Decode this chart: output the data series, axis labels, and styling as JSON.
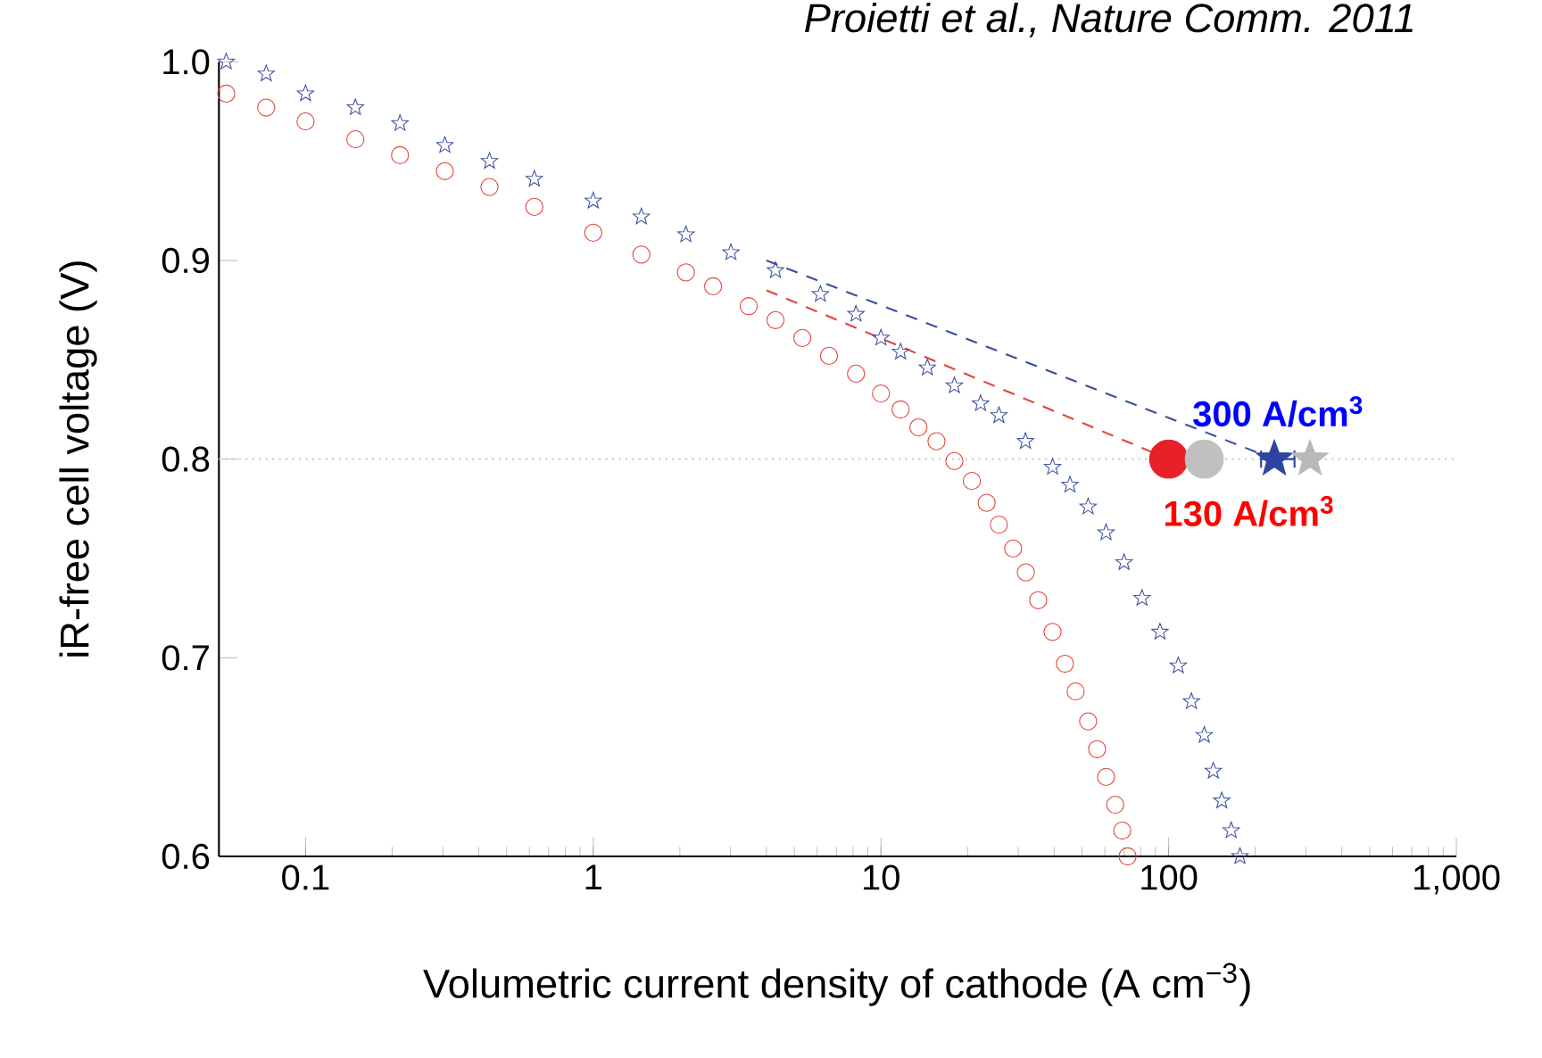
{
  "chart_data": {
    "type": "scatter",
    "xlabel": "Volumetric current density of cathode (A cm$^{−3}$)",
    "ylabel": "iR-free cell voltage (V)",
    "log": "x",
    "xlim": [
      0.05,
      1000
    ],
    "ylim": [
      0.6,
      1.0
    ],
    "xticks": [
      0.1,
      1,
      10,
      100,
      {
        "value": 1000,
        "label": "1,000"
      }
    ],
    "yticks": [
      0.6,
      0.7,
      0.8,
      0.9,
      {
        "value": 1,
        "label": "1.0"
      }
    ],
    "series": [
      {
        "marker": "circle",
        "color": "#e0463c",
        "x": [
          0.053,
          0.073,
          0.1,
          0.149,
          0.213,
          0.305,
          0.436,
          0.624,
          1,
          1.47,
          2.1,
          2.61,
          3.47,
          4.3,
          5.33,
          6.6,
          8.19,
          10,
          11.7,
          13.5,
          15.6,
          18,
          20.7,
          23.3,
          25.7,
          28.8,
          31.9,
          35.2,
          39.5,
          43.6,
          47.5,
          52.5,
          56.4,
          60.6,
          65.2,
          69,
          72
        ],
        "values": [
          0.984,
          0.977,
          0.97,
          0.961,
          0.953,
          0.945,
          0.937,
          0.927,
          0.914,
          0.903,
          0.894,
          0.887,
          0.877,
          0.87,
          0.861,
          0.852,
          0.843,
          0.833,
          0.825,
          0.816,
          0.809,
          0.799,
          0.789,
          0.778,
          0.767,
          0.755,
          0.743,
          0.729,
          0.713,
          0.697,
          0.683,
          0.668,
          0.654,
          0.64,
          0.626,
          0.613,
          0.6
        ]
      },
      {
        "marker": "star",
        "color": "#3c4f9e",
        "x": [
          0.053,
          0.073,
          0.1,
          0.149,
          0.213,
          0.305,
          0.436,
          0.624,
          1,
          1.47,
          2.1,
          3.01,
          4.3,
          6.16,
          8.19,
          10,
          11.7,
          14.5,
          18,
          22.2,
          25.7,
          31.8,
          39.5,
          45.4,
          52.5,
          60.6,
          70,
          80.8,
          93.3,
          108,
          120,
          133,
          143,
          153,
          165,
          177
        ],
        "values": [
          1.0,
          0.994,
          0.984,
          0.977,
          0.969,
          0.958,
          0.95,
          0.941,
          0.93,
          0.922,
          0.913,
          0.904,
          0.895,
          0.883,
          0.873,
          0.861,
          0.854,
          0.846,
          0.837,
          0.828,
          0.822,
          0.809,
          0.796,
          0.787,
          0.776,
          0.763,
          0.748,
          0.73,
          0.713,
          0.696,
          0.678,
          0.661,
          0.643,
          0.628,
          0.613,
          0.6
        ]
      },
      {
        "type": "line",
        "line_style": "dashed",
        "marker": "none",
        "color": "#e0463c",
        "x": [
          4,
          100
        ],
        "values": [
          0.885,
          0.8
        ]
      },
      {
        "type": "line",
        "line_style": "dashed",
        "marker": "none",
        "color": "#3c4f9e",
        "x": [
          4,
          233
        ],
        "values": [
          0.9,
          0.8
        ]
      },
      {
        "marker": "circle",
        "color": "#e8202a",
        "x": [
          100
        ],
        "values": [
          0.8
        ]
      },
      {
        "marker": "circle",
        "color": "#c0c0c0",
        "x": [
          133
        ],
        "values": [
          0.8
        ]
      },
      {
        "marker": "star",
        "color": "#2d44a0",
        "x": [
          233
        ],
        "values": [
          0.8
        ],
        "xerrors": [
          [
            208,
            276
          ]
        ]
      },
      {
        "marker": "star",
        "color": "#b8b8b8",
        "x": [
          310
        ],
        "values": [
          0.8
        ]
      }
    ],
    "ref_lines": [
      {
        "axis": "y",
        "value": 0.8,
        "color": "#cccccc",
        "line_style": "dotted"
      }
    ],
    "annotations": [
      "Proietti et al., Nature Comm. 2011",
      {
        "text": "300 A/cm$^{3}$",
        "x": 300,
        "y": 0.8
      },
      {
        "text": "130 A/cm$^{3}$",
        "x": 130,
        "y": 0.8
      }
    ]
  }
}
